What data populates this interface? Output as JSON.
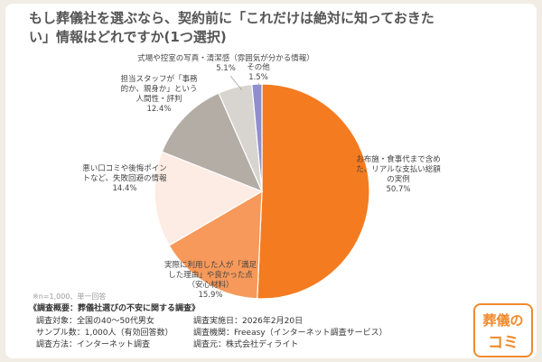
{
  "chart_data": {
    "type": "pie",
    "title": "もし葬儀社を選ぶなら、契約前に「これだけは絶対に知っておきたい」情報はどれですか(1つ選択)",
    "categories": [
      "お布施・食事代まで含めた、リアルな支払い総額の実例",
      "実際に利用した人が「満足した理由」や良かった点（安心材料）",
      "悪い口コミや後悔ポイントなど、失敗回避の情報",
      "担当スタッフが「事務的か、親身か」という人間性・評判",
      "式場や控室の写真・清潔感（雰囲気が分かる情報）",
      "その他"
    ],
    "values": [
      50.7,
      15.9,
      14.4,
      12.4,
      5.1,
      1.5
    ],
    "value_labels": [
      "50.7%",
      "15.9%",
      "14.4%",
      "12.4%",
      "5.1%",
      "1.5%"
    ],
    "colors": [
      "#f47b20",
      "#f6995a",
      "#fdece3",
      "#b3ada6",
      "#d8d5d1",
      "#8f8fcf"
    ]
  },
  "note": "※n=1,000、単一回答",
  "survey": {
    "title": "《調査概要：葬儀社選びの不安に関する調査》",
    "left": [
      "調査対象：全国の40～50代男女",
      "サンプル数：1,000人（有効回答数）",
      "調査方法：インターネット調査"
    ],
    "right": [
      "調査実施日：2026年2月20日",
      "調査機関：Freeasy（インターネット調査サービス）",
      "調査元：株式会社ディライト"
    ]
  },
  "logo": {
    "top": "葬儀の",
    "bottom": "コミ"
  }
}
